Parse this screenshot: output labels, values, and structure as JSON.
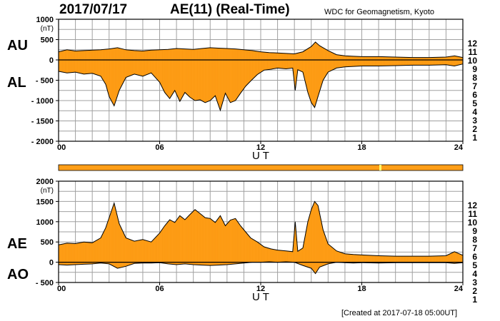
{
  "header": {
    "date": "2017/07/17",
    "title": "AE(11) (Real-Time)",
    "source": "WDC for Geomagnetism, Kyoto",
    "created": "[Created at 2017-07-18 05:00UT]"
  },
  "colors": {
    "fill": "#ff9e17",
    "line": "#000000",
    "grid": "#a0a0a0",
    "status_bar": "#ff9e17",
    "status_marker": "#ffff66"
  },
  "station_scale": [
    {
      "label": "12",
      "color": "#e8237a"
    },
    {
      "label": "11",
      "color": "#d41e1e"
    },
    {
      "label": "10",
      "color": "#ff9e17"
    },
    {
      "label": "9",
      "color": "#e0e000"
    },
    {
      "label": "8",
      "color": "#7ee000"
    },
    {
      "label": "7",
      "color": "#00d0e0"
    },
    {
      "label": "6",
      "color": "#1f6fe8"
    },
    {
      "label": "5",
      "color": "#2010c0"
    },
    {
      "label": "4",
      "color": "#c010c0"
    },
    {
      "label": "3",
      "color": "#222222"
    },
    {
      "label": "2",
      "color": "#666666"
    },
    {
      "label": "1",
      "color": "#b0b0b0"
    }
  ],
  "chart_data": [
    {
      "type": "area",
      "name": "AU/AL",
      "top_label": "AU",
      "bottom_label": "AL",
      "unit": "(nT)",
      "xlabel": "U T",
      "xlim": [
        0,
        24
      ],
      "ylim": [
        -2000,
        1000
      ],
      "x_ticks": [
        0,
        6,
        12,
        18,
        24
      ],
      "x_tick_labels": [
        "00",
        "06",
        "12",
        "18",
        "24"
      ],
      "y_ticks": [
        -2000,
        -1500,
        -1000,
        -500,
        0,
        500,
        1000
      ],
      "y_tick_labels": [
        "- 2000",
        "- 1500",
        "- 1000",
        "- 500",
        "0",
        "500",
        "1000"
      ],
      "upper": {
        "x": [
          0,
          0.5,
          1,
          1.5,
          2,
          2.5,
          3,
          3.5,
          4,
          4.5,
          5,
          5.5,
          6,
          6.5,
          7,
          7.5,
          8,
          8.5,
          9,
          9.5,
          10,
          10.5,
          11,
          11.5,
          12,
          12.5,
          13,
          13.5,
          14,
          14.5,
          15,
          15.25,
          15.5,
          16,
          16.5,
          17,
          17.5,
          18,
          19,
          20,
          21,
          22,
          23,
          23.5,
          24
        ],
        "y": [
          200,
          250,
          220,
          230,
          240,
          250,
          270,
          300,
          250,
          230,
          220,
          240,
          250,
          260,
          280,
          270,
          260,
          280,
          300,
          290,
          280,
          270,
          250,
          230,
          200,
          180,
          170,
          160,
          150,
          200,
          330,
          440,
          350,
          230,
          130,
          100,
          90,
          80,
          80,
          70,
          60,
          60,
          70,
          100,
          60
        ]
      },
      "lower": {
        "x": [
          0,
          0.5,
          1,
          1.5,
          2,
          2.5,
          2.8,
          3.0,
          3.3,
          3.6,
          4,
          4.5,
          5,
          5.5,
          6,
          6.3,
          6.6,
          6.9,
          7.2,
          7.5,
          7.8,
          8.1,
          8.4,
          8.7,
          9.0,
          9.3,
          9.6,
          9.9,
          10.2,
          10.5,
          10.8,
          11.1,
          11.4,
          11.8,
          12.2,
          12.6,
          13,
          13.5,
          13.9,
          14.05,
          14.2,
          14.5,
          14.8,
          15.0,
          15.2,
          15.4,
          15.7,
          16,
          16.5,
          17,
          17.5,
          18,
          19,
          20,
          21,
          22,
          23,
          23.5,
          24
        ],
        "y": [
          -280,
          -320,
          -300,
          -350,
          -330,
          -400,
          -600,
          -900,
          -1130,
          -750,
          -430,
          -350,
          -400,
          -320,
          -550,
          -800,
          -950,
          -750,
          -1020,
          -800,
          -920,
          -1000,
          -980,
          -1050,
          -1000,
          -880,
          -1240,
          -820,
          -1050,
          -1000,
          -820,
          -650,
          -520,
          -360,
          -250,
          -230,
          -200,
          -220,
          -200,
          -750,
          -240,
          -300,
          -800,
          -1050,
          -1170,
          -900,
          -500,
          -300,
          -200,
          -170,
          -160,
          -150,
          -150,
          -140,
          -130,
          -130,
          -120,
          -150,
          -100
        ]
      }
    },
    {
      "type": "area",
      "name": "AE/AO",
      "top_label": "AE",
      "bottom_label": "AO",
      "unit": "(nT)",
      "xlabel": "U T",
      "xlim": [
        0,
        24
      ],
      "ylim": [
        -500,
        2000
      ],
      "x_ticks": [
        0,
        6,
        12,
        18,
        24
      ],
      "x_tick_labels": [
        "00",
        "06",
        "12",
        "18",
        "24"
      ],
      "y_ticks": [
        -500,
        0,
        500,
        1000,
        1500,
        2000
      ],
      "y_tick_labels": [
        "- 500",
        "0",
        "500",
        "1000",
        "1500",
        "2000"
      ],
      "upper": {
        "x": [
          0,
          0.5,
          1,
          1.5,
          2,
          2.5,
          2.8,
          3.0,
          3.3,
          3.6,
          4,
          4.5,
          5,
          5.5,
          6,
          6.3,
          6.6,
          6.9,
          7.2,
          7.5,
          7.8,
          8.1,
          8.4,
          8.7,
          9.0,
          9.3,
          9.6,
          9.9,
          10.2,
          10.5,
          10.8,
          11.1,
          11.4,
          11.8,
          12.2,
          12.6,
          13,
          13.5,
          13.9,
          14.05,
          14.2,
          14.5,
          14.8,
          15.0,
          15.2,
          15.4,
          15.7,
          16,
          16.5,
          17,
          17.5,
          18,
          19,
          20,
          21,
          22,
          23,
          23.5,
          24
        ],
        "y": [
          430,
          470,
          460,
          500,
          480,
          600,
          850,
          1100,
          1460,
          950,
          600,
          520,
          560,
          500,
          720,
          900,
          1050,
          980,
          1150,
          1050,
          1180,
          1300,
          1200,
          1100,
          1080,
          980,
          1150,
          900,
          1040,
          1080,
          900,
          750,
          600,
          500,
          380,
          330,
          300,
          280,
          260,
          1000,
          270,
          350,
          1000,
          1300,
          1500,
          1400,
          800,
          450,
          280,
          210,
          190,
          180,
          160,
          150,
          150,
          150,
          160,
          260,
          170
        ]
      },
      "lower": {
        "x": [
          0,
          0.5,
          1,
          1.5,
          2,
          2.5,
          3,
          3.5,
          4,
          4.5,
          5,
          5.5,
          6,
          6.5,
          7,
          7.5,
          8,
          8.5,
          9,
          9.5,
          10,
          10.5,
          11,
          11.5,
          12,
          12.5,
          13,
          13.5,
          14,
          14.5,
          15,
          15.25,
          15.5,
          16,
          16.5,
          17,
          17.5,
          18,
          19,
          20,
          21,
          22,
          23,
          23.5,
          24
        ],
        "y": [
          -60,
          -70,
          -60,
          -50,
          -40,
          -20,
          -40,
          -150,
          -100,
          -30,
          -20,
          -20,
          -10,
          -40,
          -60,
          -40,
          -60,
          -70,
          -80,
          -70,
          -60,
          -40,
          -20,
          0,
          0,
          10,
          0,
          10,
          0,
          -80,
          -150,
          -280,
          -120,
          -40,
          0,
          -10,
          -20,
          -10,
          -20,
          -10,
          -10,
          -10,
          -10,
          -30,
          -10
        ]
      }
    }
  ]
}
